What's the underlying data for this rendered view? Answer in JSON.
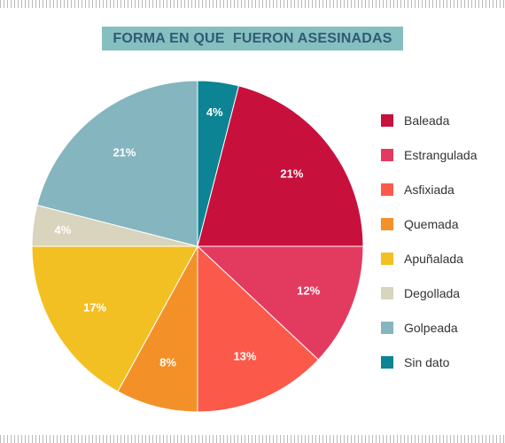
{
  "title": "FORMA EN QUE  FUERON ASESINADAS",
  "chart_data": {
    "type": "pie",
    "categories": [
      "Baleada",
      "Estrangulada",
      "Asfixiada",
      "Quemada",
      "Apuñalada",
      "Degollada",
      "Golpeada",
      "Sin dato"
    ],
    "values": [
      21,
      12,
      13,
      8,
      17,
      4,
      21,
      4
    ],
    "labels": [
      "21%",
      "12%",
      "13%",
      "8%",
      "17%",
      "4%",
      "21%",
      "4%"
    ],
    "colors": [
      "#c8103d",
      "#e33b60",
      "#fb5a4a",
      "#f39128",
      "#f3c023",
      "#d8d4bd",
      "#85b5bf",
      "#0d8494"
    ],
    "legend_position": "right",
    "start": "top",
    "direction": "clockwise"
  }
}
